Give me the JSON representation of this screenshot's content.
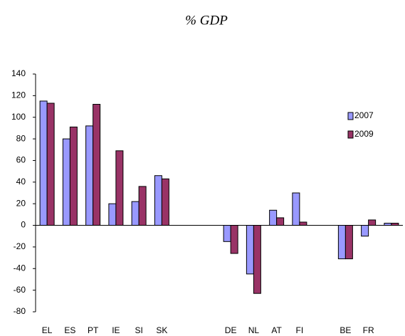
{
  "chart_data": {
    "type": "bar",
    "title": "% GDP",
    "categories": [
      "EL",
      "ES",
      "PT",
      "IE",
      "SI",
      "SK",
      null,
      null,
      "DE",
      "NL",
      "AT",
      "FI",
      null,
      "BE",
      "FR",
      null
    ],
    "series": [
      {
        "name": "2007",
        "color": "#9999ff",
        "values": [
          115,
          80,
          92,
          20,
          22,
          46,
          null,
          null,
          -15,
          -45,
          14,
          30,
          null,
          -31,
          -10,
          2
        ]
      },
      {
        "name": "2009",
        "color": "#993366",
        "values": [
          113,
          91,
          112,
          69,
          36,
          43,
          null,
          null,
          -26,
          -63,
          7,
          3,
          null,
          -31,
          5,
          2
        ]
      }
    ],
    "ylim": [
      -80,
      140
    ],
    "yticks": [
      -80,
      -60,
      -40,
      -20,
      0,
      20,
      40,
      60,
      80,
      100,
      120,
      140
    ],
    "legend": "right"
  }
}
